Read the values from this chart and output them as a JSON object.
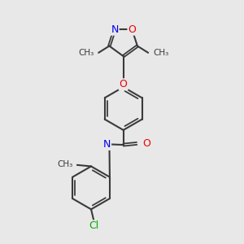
{
  "bg_color": "#e8e8e8",
  "bond_color": "#3a3a3a",
  "bond_width": 1.5,
  "N_color": "#0000ee",
  "O_color": "#ee0000",
  "Cl_color": "#00aa00",
  "H_color": "#777777",
  "font_size": 8.5,
  "figsize": [
    3.0,
    3.0
  ],
  "dpi": 100,
  "xlim": [
    1.5,
    8.5
  ],
  "ylim": [
    0.5,
    9.5
  ]
}
